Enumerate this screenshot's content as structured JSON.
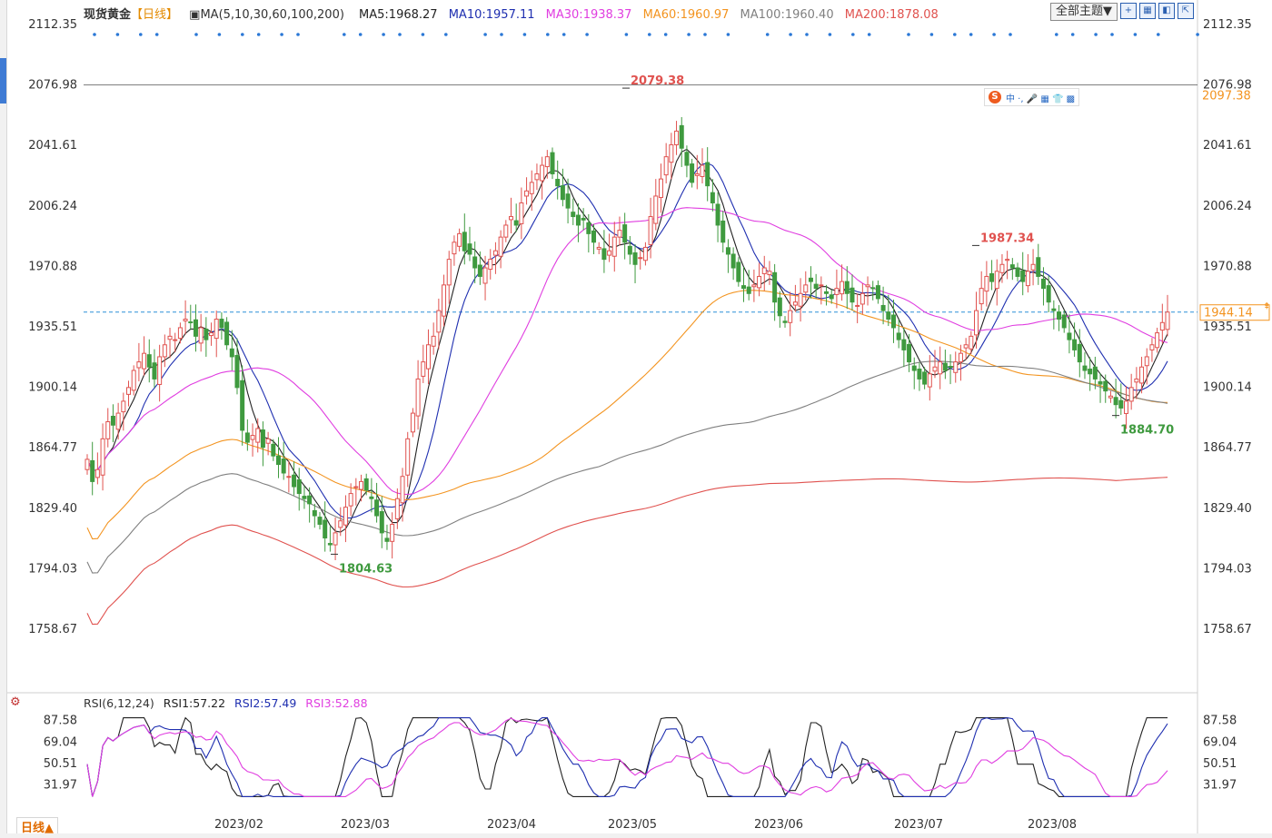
{
  "title": "现货黄金",
  "period_tag": "【日线】",
  "ma_params": "MA(5,10,30,60,100,200)",
  "ma_values": [
    {
      "label": "MA5:1968.27",
      "color": "#222222"
    },
    {
      "label": "MA10:1957.11",
      "color": "#1f2fb0"
    },
    {
      "label": "MA30:1938.37",
      "color": "#e03ee0"
    },
    {
      "label": "MA60:1960.97",
      "color": "#f39420"
    },
    {
      "label": "MA100:1960.40",
      "color": "#808080"
    },
    {
      "label": "MA200:1878.08",
      "color": "#e0524f"
    }
  ],
  "toolbar": {
    "theme_label": "全部主题▼",
    "icons": [
      "plus-box-icon",
      "grid-icon",
      "layout-icon",
      "expand-icon"
    ]
  },
  "ime": {
    "logo": "S",
    "text": "中 ·, 🎤 ▦ 👕 ▩"
  },
  "indicator": {
    "name": "RSI(6,12,24)",
    "values": [
      {
        "label": "RSI1:57.22",
        "color": "#222222"
      },
      {
        "label": "RSI2:57.49",
        "color": "#1f2fb0"
      },
      {
        "label": "RSI3:52.88",
        "color": "#e03ee0"
      }
    ]
  },
  "period_tab": "日线▲",
  "colors": {
    "up": "#e0524f",
    "down": "#3f9a3f",
    "current_line": "#2c8fd8",
    "marker_dots": "#2b78d6"
  },
  "chart_data": [
    {
      "type": "candlestick",
      "title": "现货黄金 日线",
      "y_ticks": [
        2112.35,
        2076.98,
        2041.61,
        2006.24,
        1970.88,
        1935.51,
        1900.14,
        1864.77,
        1829.4,
        1794.03,
        1758.67
      ],
      "ylim": [
        1722,
        2112.35
      ],
      "x_ticks": [
        "2023/02",
        "2023/03",
        "2023/04",
        "2023/05",
        "2023/06",
        "2023/07",
        "2023/08"
      ],
      "annotations": [
        {
          "text": "2079.38",
          "kind": "high"
        },
        {
          "text": "1987.34",
          "kind": "high"
        },
        {
          "text": "1804.63",
          "kind": "low"
        },
        {
          "text": "1884.70",
          "kind": "low"
        }
      ],
      "horizontal_line": {
        "value": 2076.98,
        "label": "2076.98"
      },
      "right_labels": [
        "2097.38"
      ],
      "current_price": {
        "value": 1944.14,
        "label": "1944.14"
      },
      "close_series": [
        1858,
        1845,
        1852,
        1870,
        1880,
        1878,
        1885,
        1892,
        1900,
        1910,
        1915,
        1920,
        1912,
        1905,
        1918,
        1925,
        1930,
        1928,
        1935,
        1940,
        1938,
        1930,
        1935,
        1928,
        1932,
        1940,
        1935,
        1925,
        1918,
        1900,
        1875,
        1868,
        1872,
        1876,
        1865,
        1870,
        1860,
        1855,
        1850,
        1848,
        1842,
        1838,
        1835,
        1832,
        1825,
        1820,
        1812,
        1808,
        1815,
        1822,
        1830,
        1838,
        1842,
        1845,
        1840,
        1835,
        1825,
        1815,
        1810,
        1820,
        1835,
        1848,
        1870,
        1885,
        1905,
        1915,
        1925,
        1930,
        1945,
        1960,
        1975,
        1985,
        1990,
        1980,
        1978,
        1970,
        1965,
        1970,
        1975,
        1980,
        1988,
        1995,
        2000,
        1995,
        2008,
        2015,
        2020,
        2025,
        2030,
        2035,
        2025,
        2018,
        2010,
        2005,
        2000,
        1995,
        1998,
        1990,
        1985,
        1982,
        1975,
        1980,
        1988,
        1992,
        1985,
        1978,
        1972,
        1976,
        1982,
        2000,
        2012,
        2022,
        2035,
        2042,
        2050,
        2040,
        2030,
        2020,
        2025,
        2030,
        2018,
        2008,
        1995,
        1985,
        1978,
        1970,
        1962,
        1958,
        1955,
        1960,
        1965,
        1970,
        1968,
        1950,
        1942,
        1938,
        1945,
        1950,
        1955,
        1960,
        1962,
        1958,
        1960,
        1955,
        1952,
        1958,
        1962,
        1955,
        1950,
        1948,
        1955,
        1960,
        1958,
        1952,
        1945,
        1940,
        1935,
        1928,
        1922,
        1915,
        1910,
        1905,
        1902,
        1908,
        1912,
        1915,
        1910,
        1912,
        1915,
        1920,
        1925,
        1930,
        1945,
        1958,
        1965,
        1962,
        1968,
        1972,
        1975,
        1970,
        1965,
        1962,
        1968,
        1972,
        1965,
        1958,
        1950,
        1945,
        1940,
        1935,
        1928,
        1922,
        1915,
        1910,
        1908,
        1905,
        1902,
        1898,
        1895,
        1890,
        1888,
        1892,
        1900,
        1905,
        1912,
        1918,
        1925,
        1932,
        1938,
        1944.14
      ]
    },
    {
      "type": "line",
      "title": "RSI(6,12,24)",
      "y_ticks": [
        87.58,
        69.04,
        50.51,
        31.97
      ],
      "ylim": [
        20,
        92
      ],
      "series": [
        {
          "name": "RSI1",
          "last": 57.22
        },
        {
          "name": "RSI2",
          "last": 57.49
        },
        {
          "name": "RSI3",
          "last": 52.88
        }
      ]
    }
  ]
}
